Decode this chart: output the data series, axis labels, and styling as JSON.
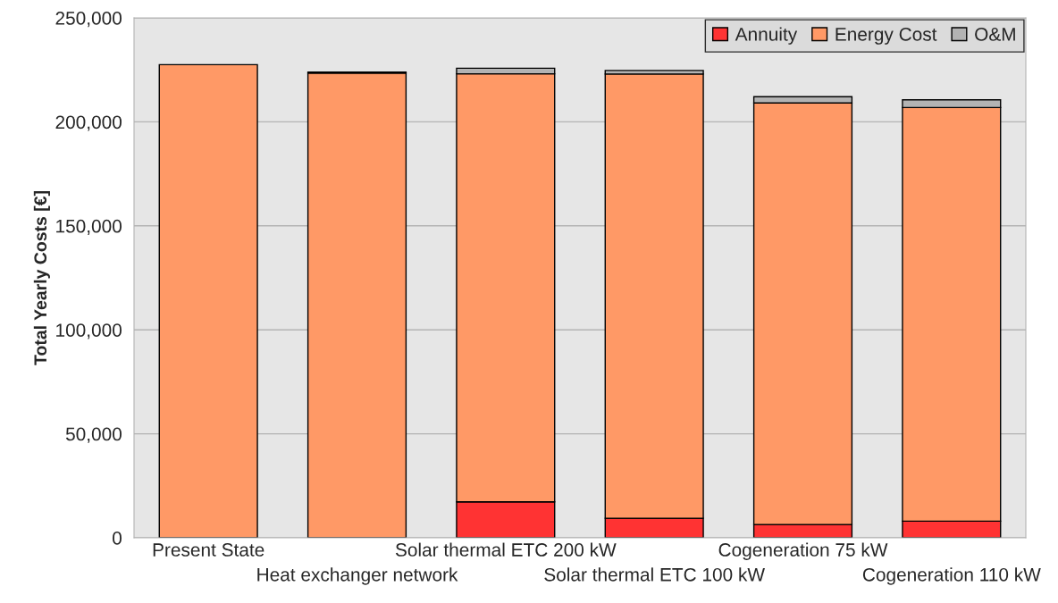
{
  "chart_data": {
    "type": "bar",
    "stacked": true,
    "ylabel": "Total Yearly Costs [€]",
    "categories": [
      "Present State",
      "Heat exchanger network",
      "Solar thermal ETC 200 kW",
      "Solar thermal ETC 100 kW",
      "Cogeneration 75 kW",
      "Cogeneration 110 kW"
    ],
    "series": [
      {
        "name": "Annuity",
        "color": "#ff3333",
        "values": [
          0,
          null,
          17300,
          9400,
          6400,
          8000
        ]
      },
      {
        "name": "Energy Cost",
        "color": "#ff9966",
        "values": [
          227500,
          223500,
          205800,
          213600,
          202700,
          198900
        ]
      },
      {
        "name": "O&M",
        "color": "#b3b3b3",
        "values": [
          0,
          400,
          2700,
          1700,
          3000,
          3700
        ]
      }
    ],
    "ylim": [
      0,
      250000
    ],
    "yticks": [
      {
        "value": 0,
        "label": "0"
      },
      {
        "value": 50000,
        "label": "50,000"
      },
      {
        "value": 100000,
        "label": "100,000"
      },
      {
        "value": 150000,
        "label": "150,000"
      },
      {
        "value": 200000,
        "label": "200,000"
      },
      {
        "value": 250000,
        "label": "250,000"
      }
    ],
    "grid": "y",
    "legend": "top right"
  }
}
